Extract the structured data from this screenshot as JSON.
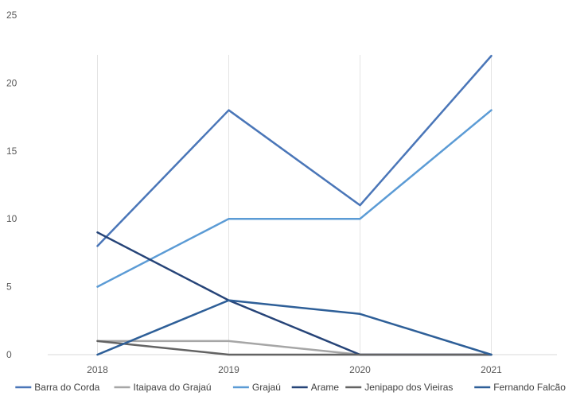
{
  "chart_data": {
    "type": "line",
    "title": "",
    "xlabel": "",
    "ylabel": "",
    "categories": [
      "2018",
      "2019",
      "2020",
      "2021"
    ],
    "ylim": [
      0,
      25
    ],
    "yticks": [
      "0",
      "5",
      "10",
      "15",
      "20",
      "25"
    ],
    "grid": "vertical",
    "legend_position": "bottom",
    "series": [
      {
        "name": "Barra do Corda",
        "values": [
          8,
          18,
          11,
          22
        ],
        "color": "#4a76b8"
      },
      {
        "name": "Itaipava do Grajaú",
        "values": [
          1,
          1,
          0,
          0
        ],
        "color": "#a6a6a6"
      },
      {
        "name": "Grajaú",
        "values": [
          5,
          10,
          10,
          18
        ],
        "color": "#5b9bd5"
      },
      {
        "name": "Arame",
        "values": [
          9,
          4,
          0,
          0
        ],
        "color": "#264478"
      },
      {
        "name": "Jenipapo dos Vieiras",
        "values": [
          1,
          0,
          0,
          0
        ],
        "color": "#636363"
      },
      {
        "name": "Fernando Falcão",
        "values": [
          0,
          4,
          3,
          0
        ],
        "color": "#2e5f98"
      }
    ]
  }
}
